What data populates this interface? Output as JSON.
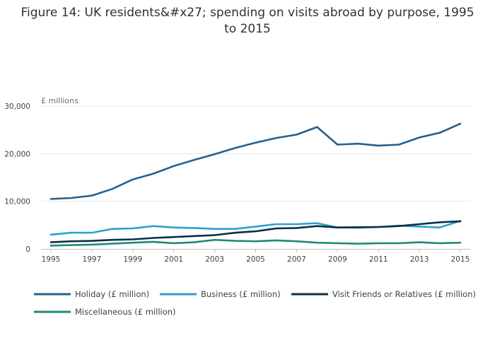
{
  "chart_data": {
    "type": "line",
    "title": "Figure 14: UK residents&#x27; spending on visits abroad by purpose, 1995 to 2015",
    "ylabel": "£ millions",
    "xlabel": "",
    "ylim": [
      0,
      30000
    ],
    "y_ticks": [
      0,
      10000,
      20000,
      30000
    ],
    "y_tick_labels": [
      "0",
      "10,000",
      "20,000",
      "30,000"
    ],
    "x_ticks": [
      1995,
      1997,
      1999,
      2001,
      2003,
      2005,
      2007,
      2009,
      2011,
      2013,
      2015
    ],
    "x": [
      1995,
      1996,
      1997,
      1998,
      1999,
      2000,
      2001,
      2002,
      2003,
      2004,
      2005,
      2006,
      2007,
      2008,
      2009,
      2010,
      2011,
      2012,
      2013,
      2014,
      2015
    ],
    "series": [
      {
        "name": "Holiday (£ million)",
        "color": "#27608c",
        "values": [
          10500,
          10700,
          11200,
          12600,
          14600,
          15800,
          17400,
          18700,
          19900,
          21200,
          22300,
          23300,
          24000,
          25600,
          21900,
          22100,
          21700,
          21900,
          23400,
          24400,
          26300
        ]
      },
      {
        "name": "Business (£ million)",
        "color": "#2ea0d0",
        "values": [
          3000,
          3400,
          3400,
          4200,
          4300,
          4800,
          4500,
          4400,
          4200,
          4200,
          4700,
          5200,
          5200,
          5400,
          4500,
          4600,
          4600,
          4900,
          4700,
          4500,
          5900
        ]
      },
      {
        "name": "Visit Friends or Relatives (£ million)",
        "color": "#0b2e45",
        "values": [
          1400,
          1600,
          1700,
          1900,
          2000,
          2300,
          2500,
          2700,
          2900,
          3400,
          3700,
          4300,
          4400,
          4800,
          4500,
          4500,
          4600,
          4800,
          5200,
          5600,
          5800
        ]
      },
      {
        "name": "Miscellaneous (£ million)",
        "color": "#1f8a78",
        "values": [
          700,
          800,
          900,
          1100,
          1300,
          1500,
          1200,
          1400,
          1900,
          1700,
          1600,
          1800,
          1600,
          1300,
          1200,
          1100,
          1200,
          1200,
          1400,
          1200,
          1300
        ]
      }
    ],
    "legend_position": "bottom",
    "grid": true
  }
}
